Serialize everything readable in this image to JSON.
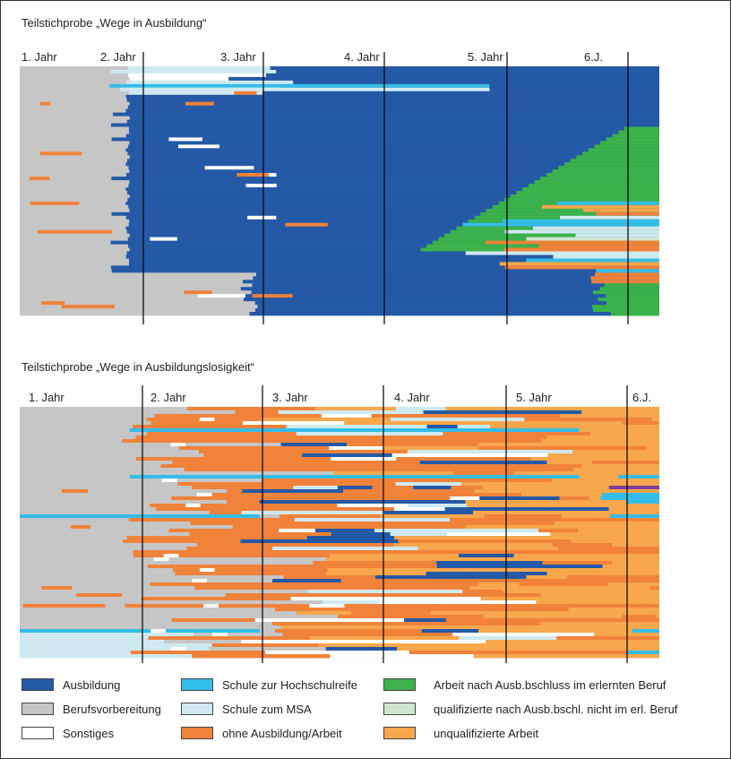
{
  "colors": {
    "ausbildung": "#2459a6",
    "berufsvorbereitung": "#c6c6c6",
    "sonstiges": "#ffffff",
    "schule_hochschulreife": "#33bde8",
    "schule_msa": "#cfe9f0",
    "ohne_ausbildung": "#f0823a",
    "arbeit_erlernt": "#3bb24a",
    "qualifiziert_nicht_erl": "#cfe6cf",
    "unqualifiziert": "#f8a74c",
    "sonstige_lila": "#7b3f9c"
  },
  "chart_data": [
    {
      "type": "sequence-index-plot",
      "title": "Teilstichprobe „Wege in Ausbildung“",
      "period_labels": [
        "1. Jahr",
        "2. Jahr",
        "3. Jahr",
        "4. Jahr",
        "5. Jahr",
        "6.J."
      ],
      "x_unit": "Monate",
      "x_range": [
        0,
        64
      ],
      "year_boundaries": [
        12,
        24,
        36,
        48,
        60
      ],
      "sequences_shown": 70
    },
    {
      "type": "sequence-index-plot",
      "title": "Teilstichprobe „Wege in Ausbildungslosigkeit“",
      "period_labels": [
        "1. Jahr",
        "2. Jahr",
        "3. Jahr",
        "4. Jahr",
        "5. Jahr",
        "6.J."
      ],
      "x_unit": "Monate",
      "x_range": [
        0,
        64
      ],
      "year_boundaries": [
        12,
        24,
        36,
        48,
        60
      ],
      "sequences_shown": 70
    }
  ],
  "legend": [
    {
      "key": "ausbildung",
      "label": "Ausbildung"
    },
    {
      "key": "berufsvorbereitung",
      "label": "Berufsvorbereitung"
    },
    {
      "key": "sonstiges",
      "label": "Sonstiges"
    },
    {
      "key": "schule_hochschulreife",
      "label": "Schule zur Hochschulreife"
    },
    {
      "key": "schule_msa",
      "label": "Schule zum MSA"
    },
    {
      "key": "ohne_ausbildung",
      "label": "ohne Ausbildung/Arbeit"
    },
    {
      "key": "arbeit_erlernt",
      "label": "Arbeit nach Ausb.bschluss im erlernten Beruf"
    },
    {
      "key": "qualifiziert_nicht_erl",
      "label": "qualifizierte nach Ausb.bschl. nicht im erl. Beruf"
    },
    {
      "key": "unqualifiziert",
      "label": "unqualifizierte Arbeit"
    }
  ]
}
